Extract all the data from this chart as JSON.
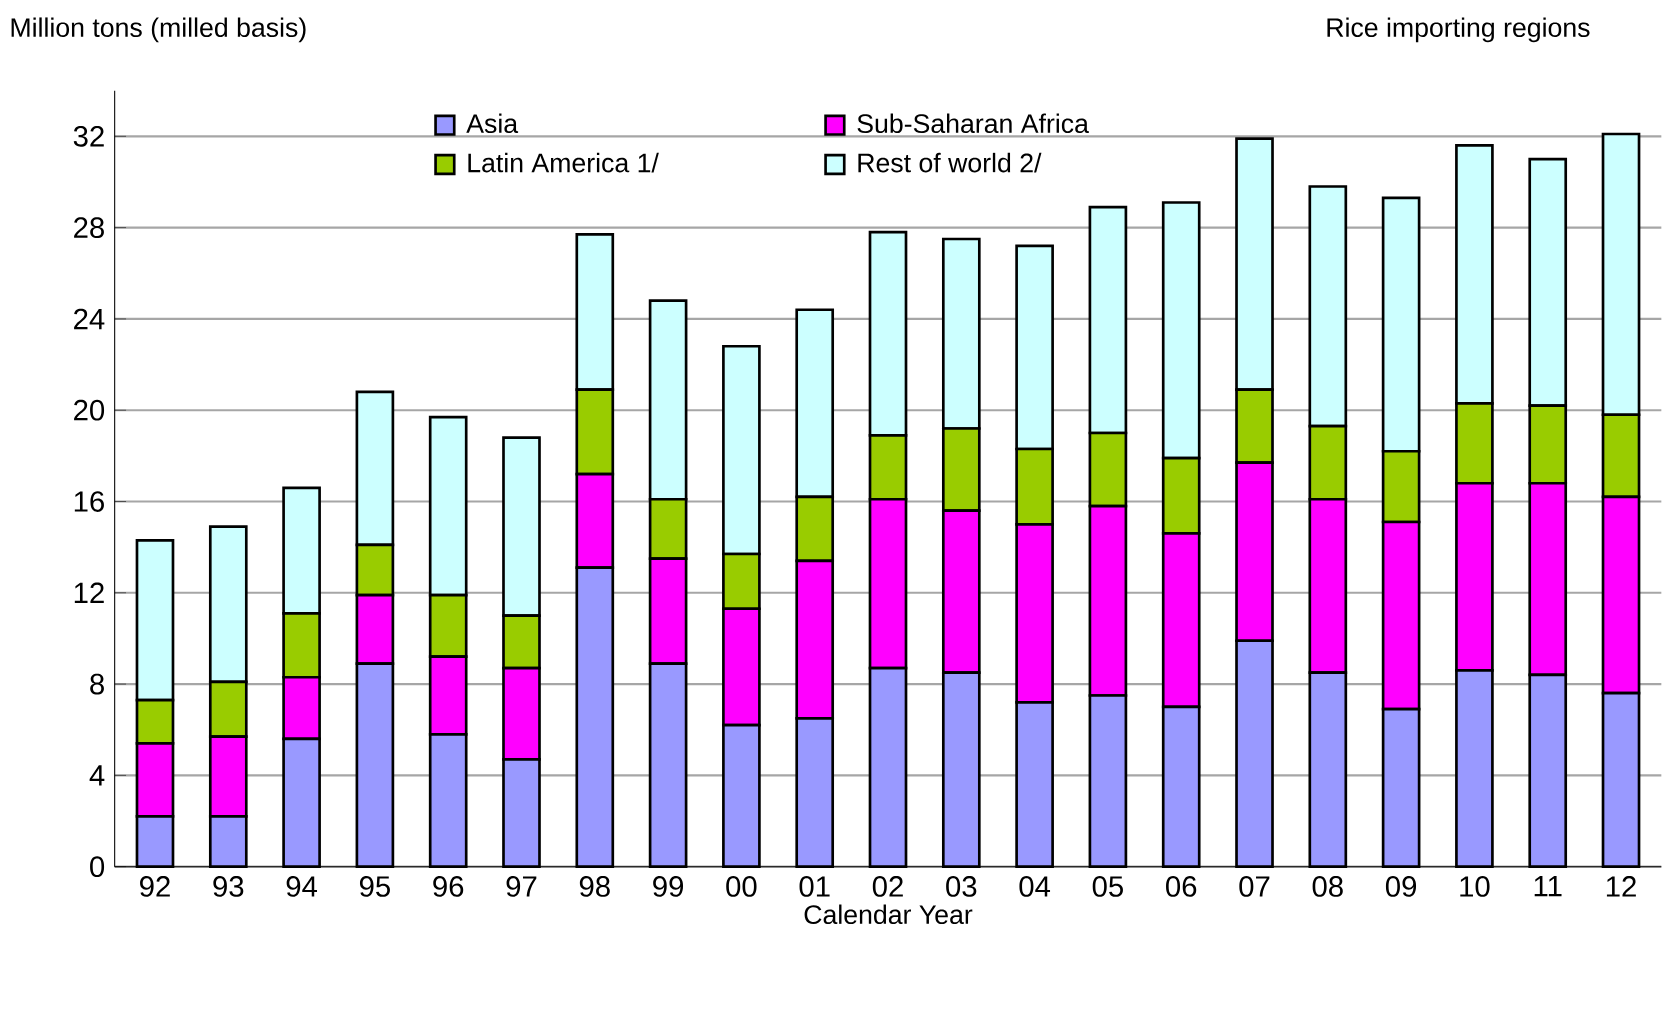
{
  "chart_data": {
    "type": "bar",
    "title": "Rice importing regions",
    "ylabel": "Million tons (milled basis)",
    "xlabel": "Calendar Year",
    "categories": [
      "92",
      "93",
      "94",
      "95",
      "96",
      "97",
      "98",
      "99",
      "00",
      "01",
      "02",
      "03",
      "04",
      "05",
      "06",
      "07",
      "08",
      "09",
      "10",
      "11",
      "12"
    ],
    "stacked": true,
    "ylim": [
      0,
      34
    ],
    "yticks": [
      0,
      4,
      8,
      12,
      16,
      20,
      24,
      28,
      32
    ],
    "grid": "y",
    "legend": "top",
    "series": [
      {
        "name": "Asia",
        "color": "#9999ff",
        "values": [
          2.2,
          2.2,
          5.6,
          8.9,
          5.8,
          4.7,
          13.1,
          8.9,
          6.2,
          6.5,
          8.7,
          8.5,
          7.2,
          7.5,
          7.0,
          9.9,
          8.5,
          6.9,
          8.6,
          8.4,
          7.6
        ]
      },
      {
        "name": "Sub-Saharan Africa",
        "color": "#ff00ff",
        "values": [
          3.2,
          3.5,
          2.7,
          3.0,
          3.4,
          4.0,
          4.1,
          4.6,
          5.1,
          6.9,
          7.4,
          7.1,
          7.8,
          8.3,
          7.6,
          7.8,
          7.6,
          8.2,
          8.2,
          8.4,
          8.6
        ]
      },
      {
        "name": "Latin America 1/",
        "color": "#99cc00",
        "values": [
          1.9,
          2.4,
          2.8,
          2.2,
          2.7,
          2.3,
          3.7,
          2.6,
          2.4,
          2.8,
          2.8,
          3.6,
          3.3,
          3.2,
          3.3,
          3.2,
          3.2,
          3.1,
          3.5,
          3.4,
          3.6
        ]
      },
      {
        "name": "Rest of world 2/",
        "color": "#ccffff",
        "values": [
          7.0,
          6.8,
          5.5,
          6.7,
          7.8,
          7.8,
          6.8,
          8.7,
          9.1,
          8.2,
          8.9,
          8.3,
          8.9,
          9.9,
          11.2,
          11.0,
          10.5,
          11.1,
          11.3,
          10.8,
          12.3
        ]
      }
    ]
  }
}
